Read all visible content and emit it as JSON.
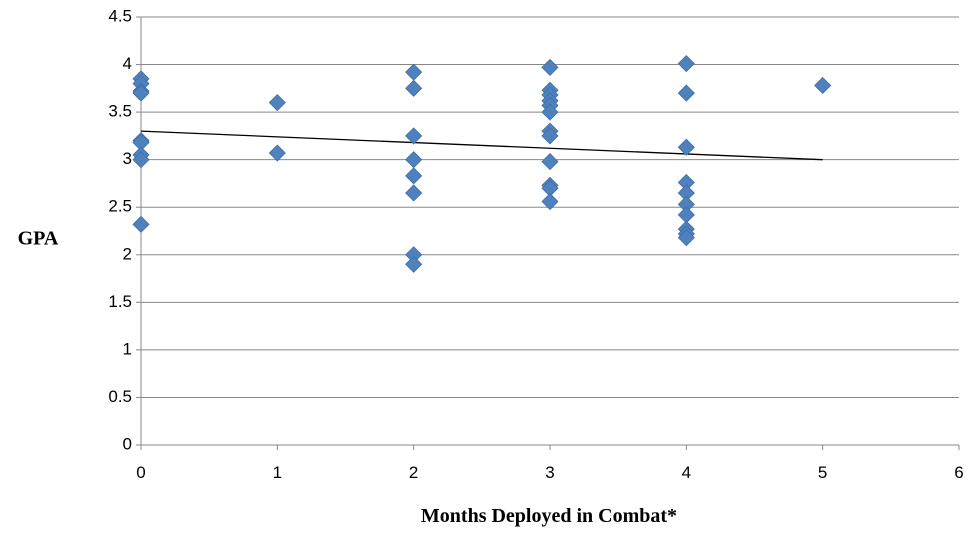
{
  "chart_data": {
    "type": "scatter",
    "title": "",
    "xlabel": "Months Deployed in Combat*",
    "ylabel": "GPA",
    "xlim": [
      0,
      6
    ],
    "ylim": [
      0,
      4.5
    ],
    "x_ticks": [
      "0",
      "1",
      "2",
      "3",
      "4",
      "5",
      "6"
    ],
    "y_ticks": [
      "0",
      "0.5",
      "1",
      "1.5",
      "2",
      "2.5",
      "3",
      "3.5",
      "4",
      "4.5"
    ],
    "grid": "horizontal",
    "legend": "none",
    "marker": "diamond",
    "marker_color": "#4F81BD",
    "series": [
      {
        "points": [
          [
            0,
            3.85
          ],
          [
            0,
            3.8
          ],
          [
            0,
            3.72
          ],
          [
            0,
            3.7
          ],
          [
            0,
            3.2
          ],
          [
            0,
            3.18
          ],
          [
            0,
            3.05
          ],
          [
            0,
            3.0
          ],
          [
            0,
            2.32
          ],
          [
            1,
            3.6
          ],
          [
            1,
            3.07
          ],
          [
            2,
            3.92
          ],
          [
            2,
            3.75
          ],
          [
            2,
            3.25
          ],
          [
            2,
            3.0
          ],
          [
            2,
            2.83
          ],
          [
            2,
            2.65
          ],
          [
            2,
            2.0
          ],
          [
            2,
            1.9
          ],
          [
            3,
            3.97
          ],
          [
            3,
            3.73
          ],
          [
            3,
            3.68
          ],
          [
            3,
            3.62
          ],
          [
            3,
            3.57
          ],
          [
            3,
            3.5
          ],
          [
            3,
            3.3
          ],
          [
            3,
            3.25
          ],
          [
            3,
            2.98
          ],
          [
            3,
            2.73
          ],
          [
            3,
            2.7
          ],
          [
            3,
            2.56
          ],
          [
            4,
            4.01
          ],
          [
            4,
            3.7
          ],
          [
            4,
            3.13
          ],
          [
            4,
            2.76
          ],
          [
            4,
            2.65
          ],
          [
            4,
            2.53
          ],
          [
            4,
            2.42
          ],
          [
            4,
            2.27
          ],
          [
            4,
            2.22
          ],
          [
            4,
            2.18
          ],
          [
            5,
            3.78
          ]
        ]
      }
    ],
    "trendline": {
      "type": "linear",
      "x": [
        0,
        5
      ],
      "y": [
        3.3,
        3.0
      ],
      "color": "#000000"
    }
  }
}
